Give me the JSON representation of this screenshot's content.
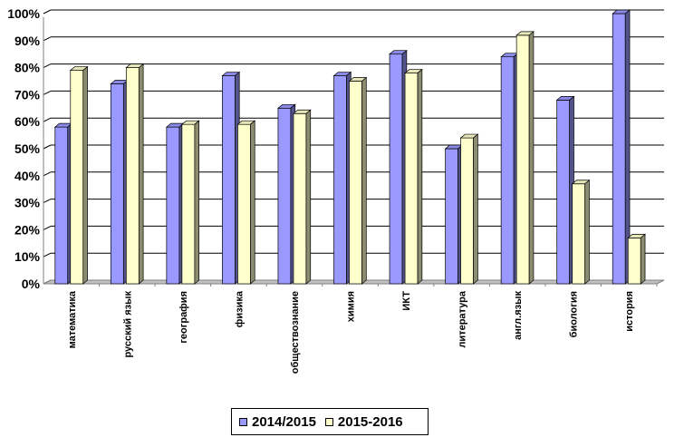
{
  "chart_data": {
    "type": "bar",
    "title": "",
    "xlabel": "",
    "ylabel": "",
    "ylim": [
      0,
      100
    ],
    "y_ticks": [
      "0%",
      "10%",
      "20%",
      "30%",
      "40%",
      "50%",
      "60%",
      "70%",
      "80%",
      "90%",
      "100%"
    ],
    "grid": true,
    "legend_position": "bottom",
    "categories": [
      "математика",
      "русский язык",
      "география",
      "физика",
      "обществознание",
      "химия",
      "ИКТ",
      "литература",
      "англ.язык",
      "биология",
      "история"
    ],
    "series": [
      {
        "name": "2014/2015",
        "color": "#9999ff",
        "values": [
          58,
          74,
          58,
          77,
          65,
          77,
          85,
          50,
          84,
          68,
          100
        ]
      },
      {
        "name": "2015-2016",
        "color": "#ffffcc",
        "values": [
          79,
          80,
          59,
          59,
          63,
          75,
          78,
          54,
          92,
          37,
          17
        ]
      }
    ]
  }
}
